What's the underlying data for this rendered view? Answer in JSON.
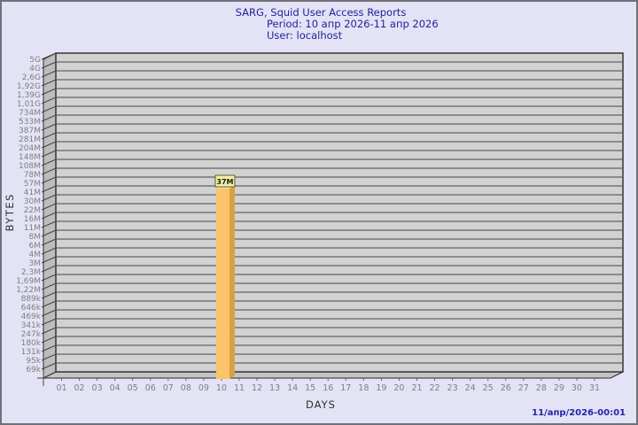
{
  "window": {
    "background_color": "#E3E3F5",
    "border_color": "#70707A"
  },
  "header": {
    "title": "SARG, Squid User Access Reports",
    "period": "Period: 10 апр 2026-11 апр 2026",
    "user": "User: localhost",
    "text_color": "#1F1F9C"
  },
  "footer": {
    "timestamp": "11/апр/2026-00:01",
    "text_color": "#2525A8"
  },
  "chart_data": {
    "type": "bar",
    "title": "SARG, Squid User Access Reports",
    "subtitle": "Period: 10 апр 2026-11 апр 2026",
    "user_line": "User: localhost",
    "xlabel": "DAYS",
    "ylabel": "BYTES",
    "yscale": "log",
    "grid": "horizontal",
    "legend": "none",
    "y_ticks": [
      {
        "label": "5G",
        "value": 5000000000
      },
      {
        "label": "4G",
        "value": 4000000000
      },
      {
        "label": "2,6G",
        "value": 2600000000
      },
      {
        "label": "1,92G",
        "value": 1920000000
      },
      {
        "label": "1,39G",
        "value": 1390000000
      },
      {
        "label": "1,01G",
        "value": 1010000000
      },
      {
        "label": "734M",
        "value": 734000000
      },
      {
        "label": "533M",
        "value": 533000000
      },
      {
        "label": "387M",
        "value": 387000000
      },
      {
        "label": "281M",
        "value": 281000000
      },
      {
        "label": "204M",
        "value": 204000000
      },
      {
        "label": "148M",
        "value": 148000000
      },
      {
        "label": "108M",
        "value": 108000000
      },
      {
        "label": "78M",
        "value": 78000000
      },
      {
        "label": "57M",
        "value": 57000000
      },
      {
        "label": "41M",
        "value": 41000000
      },
      {
        "label": "30M",
        "value": 30000000
      },
      {
        "label": "22M",
        "value": 22000000
      },
      {
        "label": "16M",
        "value": 16000000
      },
      {
        "label": "11M",
        "value": 11000000
      },
      {
        "label": "8M",
        "value": 8000000
      },
      {
        "label": "6M",
        "value": 6000000
      },
      {
        "label": "4M",
        "value": 4000000
      },
      {
        "label": "3M",
        "value": 3000000
      },
      {
        "label": "2,3M",
        "value": 2300000
      },
      {
        "label": "1,69M",
        "value": 1690000
      },
      {
        "label": "1,22M",
        "value": 1220000
      },
      {
        "label": "889k",
        "value": 889000
      },
      {
        "label": "646k",
        "value": 646000
      },
      {
        "label": "469k",
        "value": 469000
      },
      {
        "label": "341k",
        "value": 341000
      },
      {
        "label": "247k",
        "value": 247000
      },
      {
        "label": "180k",
        "value": 180000
      },
      {
        "label": "131k",
        "value": 131000
      },
      {
        "label": "95k",
        "value": 95000
      },
      {
        "label": "69k",
        "value": 69000
      }
    ],
    "categories": [
      "01",
      "02",
      "03",
      "04",
      "05",
      "06",
      "07",
      "08",
      "09",
      "10",
      "11",
      "12",
      "13",
      "14",
      "15",
      "16",
      "17",
      "18",
      "19",
      "20",
      "21",
      "22",
      "23",
      "24",
      "25",
      "26",
      "27",
      "28",
      "29",
      "30",
      "31"
    ],
    "series": [
      {
        "name": "BYTES",
        "points": [
          {
            "category": "10",
            "value": 37000000,
            "label": "37M"
          }
        ]
      }
    ],
    "colors": {
      "bar_front": "#FBC468",
      "bar_side": "#D8A23E",
      "bar_top": "#F2DFA0",
      "plot_face": "#D2D2D2",
      "plot_wall": "#BDBDBD",
      "plot_floor": "#C4C4C4",
      "grid_line": "#454545",
      "frame_line": "#2A2A2A",
      "tick_label": "#7F7F7F",
      "value_box_bg": "#F0EFA5",
      "value_box_border": "#5F5F2A"
    }
  }
}
